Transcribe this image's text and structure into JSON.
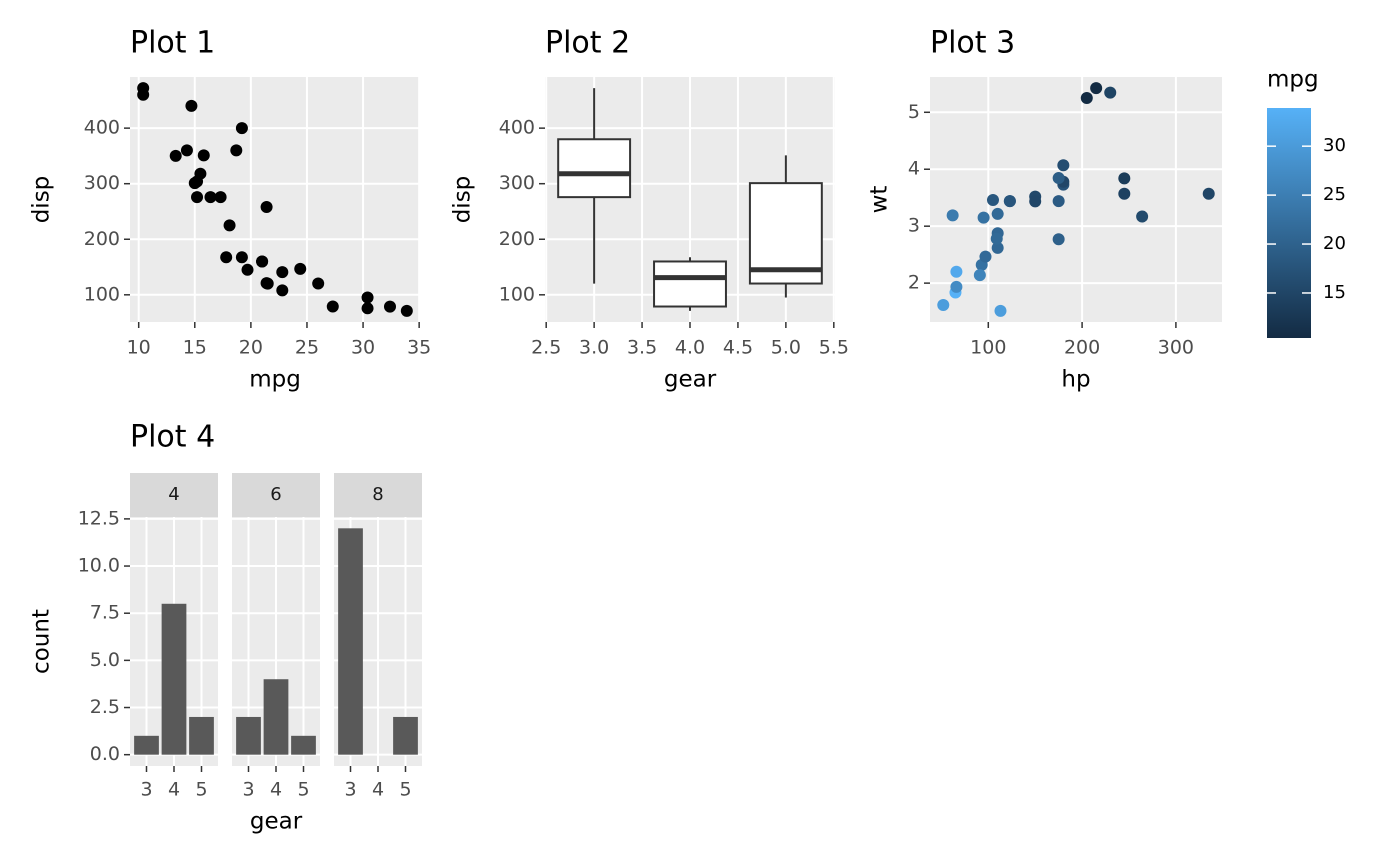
{
  "chart_data": [
    {
      "type": "scatter",
      "title": "Plot 1",
      "x_label": "mpg",
      "y_label": "disp",
      "color": "#000000",
      "x": [
        21,
        21,
        22.8,
        21.4,
        18.7,
        18.1,
        14.3,
        24.4,
        22.8,
        19.2,
        17.8,
        16.4,
        17.3,
        15.2,
        10.4,
        10.4,
        14.7,
        32.4,
        30.4,
        33.9,
        21.5,
        15.5,
        15.2,
        13.3,
        19.2,
        27.3,
        26,
        30.4,
        15.8,
        19.7,
        15,
        21.4
      ],
      "values": [
        160,
        160,
        108,
        258,
        360,
        225,
        360,
        146.7,
        140.8,
        167.6,
        167.6,
        275.8,
        275.8,
        275.8,
        472,
        460,
        440,
        78.7,
        75.7,
        71.1,
        120.1,
        318,
        304,
        350,
        400,
        79,
        120.3,
        95.1,
        351,
        145,
        301,
        121
      ],
      "xlim": [
        9.225,
        35.075
      ],
      "xticks": [
        10,
        15,
        20,
        25,
        30,
        35
      ],
      "ylim": [
        51.055,
        492.045
      ],
      "yticks": [
        100,
        200,
        300,
        400
      ],
      "grid": true
    },
    {
      "type": "box",
      "title": "Plot 2",
      "x_label": "gear",
      "y_label": "disp",
      "color": "#333333",
      "x": [
        3,
        4,
        5
      ],
      "min": [
        120.1,
        71.1,
        95.1
      ],
      "q1": [
        275.8,
        78.925,
        120.3
      ],
      "median": [
        318,
        130.9,
        145
      ],
      "q3": [
        380,
        160,
        301
      ],
      "max": [
        472,
        167.6,
        351
      ],
      "xlim": [
        2.4875,
        5.5125
      ],
      "xticks": [
        2.5,
        {
          "value": 3,
          "label": "3.0"
        },
        3.5,
        {
          "value": 4,
          "label": "4.0"
        },
        4.5,
        {
          "value": 5,
          "label": "5.0"
        },
        5.5
      ],
      "ylim": [
        51.055,
        492.045
      ],
      "yticks": [
        100,
        200,
        300,
        400
      ],
      "grid": true
    },
    {
      "type": "scatter",
      "title": "Plot 3",
      "x_label": "hp",
      "y_label": "wt",
      "x": [
        110,
        110,
        93,
        110,
        175,
        105,
        245,
        62,
        95,
        123,
        123,
        180,
        180,
        180,
        205,
        215,
        230,
        66,
        52,
        65,
        97,
        150,
        150,
        245,
        175,
        66,
        91,
        113,
        264,
        175,
        335,
        109
      ],
      "values": [
        2.62,
        2.875,
        2.32,
        3.215,
        3.44,
        3.46,
        3.57,
        3.19,
        3.15,
        3.44,
        3.44,
        4.07,
        3.73,
        3.78,
        5.25,
        5.424,
        5.345,
        2.2,
        1.615,
        1.835,
        2.465,
        3.52,
        3.435,
        3.84,
        3.845,
        1.935,
        2.14,
        1.513,
        3.17,
        2.77,
        3.57,
        2.78
      ],
      "color_values": [
        21,
        21,
        22.8,
        21.4,
        18.7,
        18.1,
        14.3,
        24.4,
        22.8,
        19.2,
        17.8,
        16.4,
        17.3,
        15.2,
        10.4,
        10.4,
        14.7,
        32.4,
        30.4,
        33.9,
        21.5,
        15.5,
        15.2,
        13.3,
        19.2,
        27.3,
        26,
        30.4,
        15.8,
        19.7,
        15,
        21.4
      ],
      "colorbar": {
        "title": "mpg",
        "low": "#132B43",
        "high": "#56B1F7",
        "lim": [
          10.4,
          33.9
        ],
        "ticks": [
          15,
          20,
          25,
          30
        ]
      },
      "xlim": [
        37.85,
        349.15
      ],
      "xticks": [
        100,
        200,
        300
      ],
      "ylim": [
        1.31745,
        5.61955
      ],
      "yticks": [
        2,
        3,
        4,
        5
      ],
      "grid": true
    },
    {
      "type": "bar",
      "title": "Plot 4",
      "x_label": "gear",
      "y_label": "count",
      "color": "#595959",
      "categories": [
        "3",
        "4",
        "5"
      ],
      "facets": [
        {
          "label": "4",
          "values": [
            1,
            8,
            2
          ]
        },
        {
          "label": "6",
          "values": [
            2,
            4,
            1
          ]
        },
        {
          "label": "8",
          "values": [
            12,
            0,
            2
          ]
        }
      ],
      "ylim": [
        -0.6,
        12.6
      ],
      "yticks": [
        {
          "value": 0,
          "label": "0.0"
        },
        2.5,
        {
          "value": 5,
          "label": "5.0"
        },
        7.5,
        {
          "value": 10,
          "label": "10.0"
        },
        12.5
      ],
      "grid": true
    }
  ]
}
